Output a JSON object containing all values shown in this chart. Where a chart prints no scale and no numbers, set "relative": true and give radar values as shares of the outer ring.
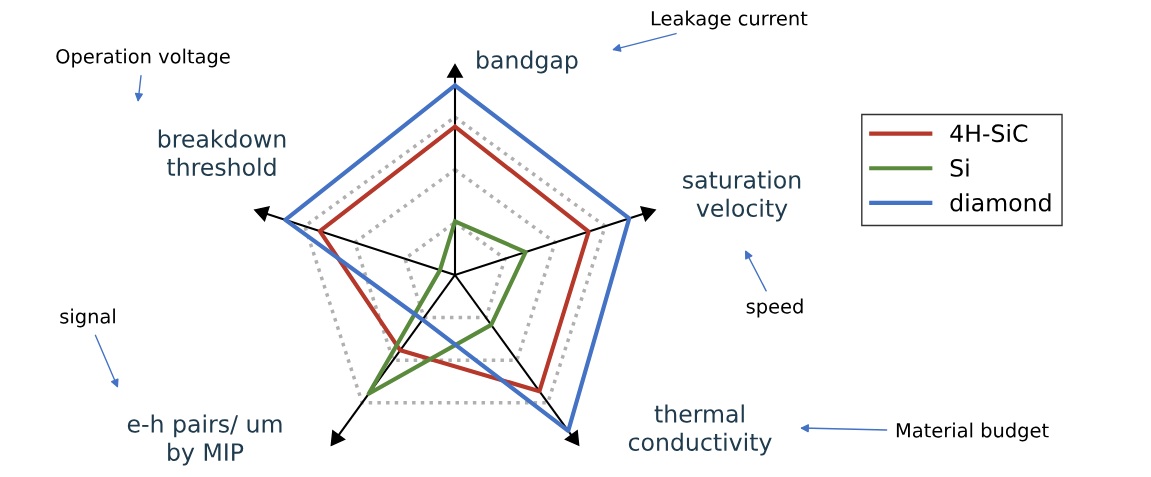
{
  "chart_data": {
    "type": "radar",
    "relative": true,
    "grid": true,
    "legend": "right",
    "categories": [
      "bandgap",
      "saturation\nvelocity",
      "thermal\nconductivity",
      "e-h pairs/ um\nby MIP",
      "breakdown\nthreshold"
    ],
    "series": [
      {
        "name": "4H-SiC",
        "color": "#b5382a",
        "values": [
          0.94,
          0.89,
          0.91,
          0.59,
          0.9
        ]
      },
      {
        "name": "Si",
        "color": "#5a8a3c",
        "values": [
          0.34,
          0.47,
          0.39,
          0.93,
          0.1
        ]
      },
      {
        "name": "diamond",
        "color": "#4472c4",
        "values": [
          1.2,
          1.16,
          1.22,
          0.35,
          1.13
        ]
      }
    ],
    "annotations": [
      "Leakage current",
      "speed",
      "Material budget",
      "signal",
      "Operation voltage"
    ]
  }
}
